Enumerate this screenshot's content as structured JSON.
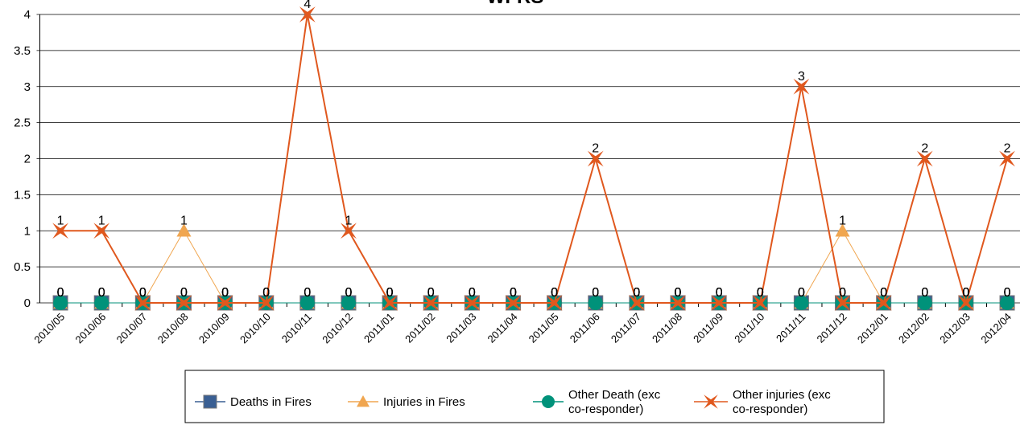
{
  "chart_data": {
    "type": "line",
    "title": "WFRS",
    "categories": [
      "2010/05",
      "2010/06",
      "2010/07",
      "2010/08",
      "2010/09",
      "2010/10",
      "2010/11",
      "2010/12",
      "2011/01",
      "2011/02",
      "2011/03",
      "2011/04",
      "2011/05",
      "2011/06",
      "2011/07",
      "2011/08",
      "2011/09",
      "2011/10",
      "2011/11",
      "2011/12",
      "2012/01",
      "2012/02",
      "2012/03",
      "2012/04"
    ],
    "series": [
      {
        "name": "Deaths in Fires",
        "color": "#3a5f93",
        "marker": "square",
        "values": [
          0,
          0,
          0,
          0,
          0,
          0,
          0,
          0,
          0,
          0,
          0,
          0,
          0,
          0,
          0,
          0,
          0,
          0,
          0,
          0,
          0,
          0,
          0,
          0
        ]
      },
      {
        "name": "Injuries in Fires",
        "color": "#f0a650",
        "marker": "triangle",
        "values": [
          0,
          0,
          0,
          1,
          0,
          0,
          0,
          0,
          0,
          0,
          0,
          0,
          0,
          0,
          0,
          0,
          0,
          0,
          0,
          1,
          0,
          0,
          0,
          0
        ]
      },
      {
        "name": "Other Death (exc co-responder)",
        "color": "#00927a",
        "marker": "circle",
        "values": [
          0,
          0,
          0,
          0,
          0,
          0,
          0,
          0,
          0,
          0,
          0,
          0,
          0,
          0,
          0,
          0,
          0,
          0,
          0,
          0,
          0,
          0,
          0,
          0
        ]
      },
      {
        "name": "Other injuries (exc co-responder)",
        "color": "#e0581e",
        "marker": "star",
        "values": [
          1,
          1,
          0,
          0,
          0,
          0,
          4,
          1,
          0,
          0,
          0,
          0,
          0,
          2,
          0,
          0,
          0,
          0,
          3,
          0,
          0,
          2,
          0,
          2
        ]
      }
    ],
    "ylim": [
      0,
      4
    ],
    "yticks": [
      0,
      0.5,
      1,
      1.5,
      2,
      2.5,
      3,
      3.5,
      4
    ],
    "grid": true,
    "legend": "bottom"
  }
}
